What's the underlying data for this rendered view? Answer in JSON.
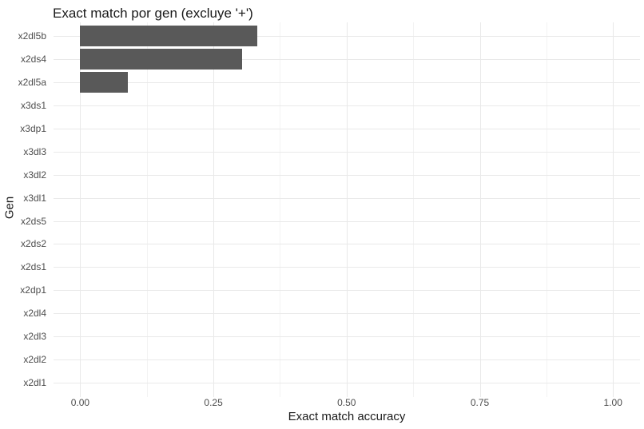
{
  "chart_data": {
    "type": "bar",
    "orientation": "horizontal",
    "title": "Exact match por gen (excluye '+')",
    "xlabel": "Exact match accuracy",
    "ylabel": "Gen",
    "categories": [
      "x2dl5b",
      "x2ds4",
      "x2dl5a",
      "x3ds1",
      "x3dp1",
      "x3dl3",
      "x3dl2",
      "x3dl1",
      "x2ds5",
      "x2ds2",
      "x2ds1",
      "x2dp1",
      "x2dl4",
      "x2dl3",
      "x2dl2",
      "x2dl1"
    ],
    "values": [
      0.333,
      0.304,
      0.09,
      0,
      0,
      0,
      0,
      0,
      0,
      0,
      0,
      0,
      0,
      0,
      0,
      0
    ],
    "xlim": [
      0,
      1
    ],
    "x_ticks": [
      {
        "value": 0.0,
        "label": "0.00"
      },
      {
        "value": 0.25,
        "label": "0.25"
      },
      {
        "value": 0.5,
        "label": "0.50"
      },
      {
        "value": 0.75,
        "label": "0.75"
      },
      {
        "value": 1.0,
        "label": "1.00"
      }
    ],
    "x_minor_ticks": [
      0.125,
      0.375,
      0.625,
      0.875
    ],
    "grid": "major-and-minor",
    "legend_position": "none",
    "colors": {
      "bar": "#595959",
      "grid_major": "#e9e9e9",
      "grid_minor": "#f3f3f3",
      "tick_text": "#4d4d4d",
      "title_text": "#1a1a1a",
      "background": "#ffffff"
    }
  }
}
